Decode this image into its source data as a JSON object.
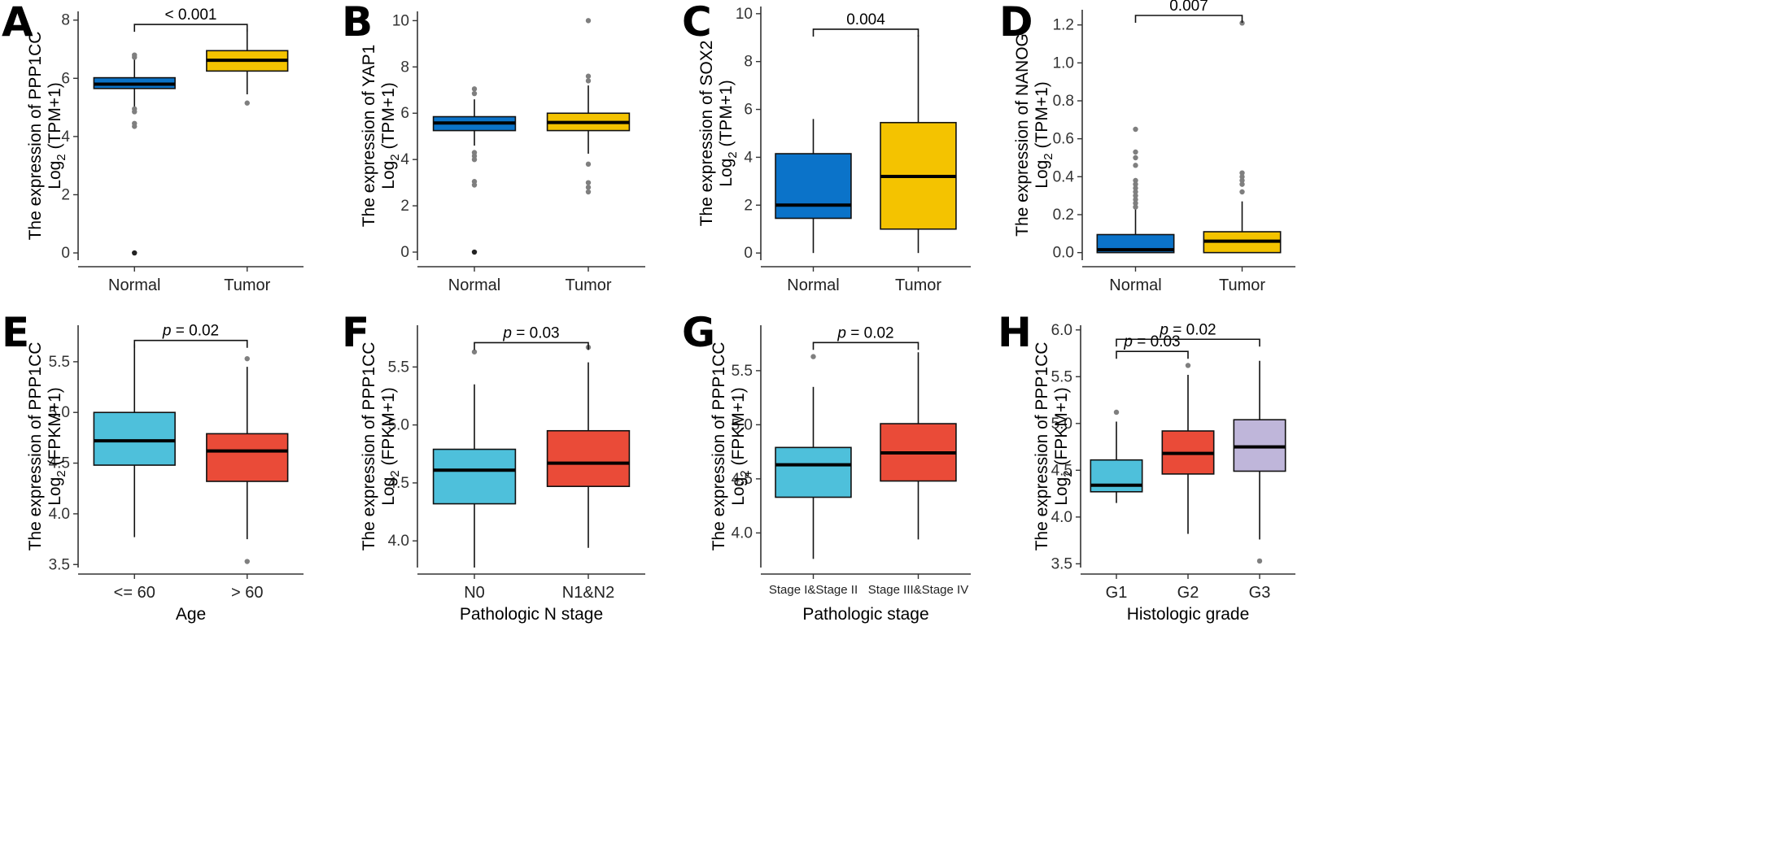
{
  "colors": {
    "normal": "#0B73C9",
    "tumor": "#F4C300",
    "cyan": "#4EC0DB",
    "red": "#EA4B38",
    "lavender": "#BFB6DA",
    "outlier_grey": "#7F7F7F",
    "outlier_black": "#222222"
  },
  "chart_data": [
    {
      "panel": "A",
      "type": "box",
      "ylabel_line1": "The expression of PPP1CC",
      "ylabel_line2_base": "Log",
      "ylabel_line2_sub": "2",
      "ylabel_line2_rest": " (TPM+1)",
      "xlabel": "",
      "ylim": [
        -0.25,
        8.3
      ],
      "yticks": [
        0,
        2,
        4,
        6,
        8
      ],
      "ytick_labels": [
        "0",
        "2",
        "4",
        "6",
        "8"
      ],
      "categories": [
        "Normal",
        "Tumor"
      ],
      "boxes": [
        {
          "name": "Normal",
          "color": "normal",
          "whisker_low": 5.0,
          "q1": 5.65,
          "median": 5.8,
          "q3": 6.02,
          "whisker_high": 6.65,
          "outliers": [
            {
              "v": 6.72,
              "c": "grey"
            },
            {
              "v": 6.8,
              "c": "grey"
            },
            {
              "v": 4.95,
              "c": "grey"
            },
            {
              "v": 4.85,
              "c": "grey"
            },
            {
              "v": 4.45,
              "c": "grey"
            },
            {
              "v": 4.35,
              "c": "grey"
            },
            {
              "v": 0.0,
              "c": "black"
            }
          ]
        },
        {
          "name": "Tumor",
          "color": "tumor",
          "whisker_low": 5.45,
          "q1": 6.25,
          "median": 6.62,
          "q3": 6.95,
          "whisker_high": 7.7,
          "outliers": [
            {
              "v": 5.15,
              "c": "grey"
            }
          ]
        }
      ],
      "brackets": [
        {
          "from": 0,
          "to": 1,
          "y": 7.85,
          "label": "< 0.001",
          "p_prefix": ""
        }
      ]
    },
    {
      "panel": "B",
      "type": "box",
      "ylabel_line1": "The expression of YAP1",
      "ylabel_line2_base": "Log",
      "ylabel_line2_sub": "2",
      "ylabel_line2_rest": " (TPM+1)",
      "xlabel": "",
      "ylim": [
        -0.35,
        10.4
      ],
      "yticks": [
        0,
        2,
        4,
        6,
        8,
        10
      ],
      "ytick_labels": [
        "0",
        "2",
        "4",
        "6",
        "8",
        "10"
      ],
      "categories": [
        "Normal",
        "Tumor"
      ],
      "boxes": [
        {
          "name": "Normal",
          "color": "normal",
          "whisker_low": 4.6,
          "q1": 5.25,
          "median": 5.58,
          "q3": 5.85,
          "whisker_high": 6.6,
          "outliers": [
            {
              "v": 7.05,
              "c": "grey"
            },
            {
              "v": 6.85,
              "c": "grey"
            },
            {
              "v": 4.3,
              "c": "grey"
            },
            {
              "v": 4.15,
              "c": "grey"
            },
            {
              "v": 4.0,
              "c": "grey"
            },
            {
              "v": 3.05,
              "c": "grey"
            },
            {
              "v": 2.9,
              "c": "grey"
            },
            {
              "v": 0.0,
              "c": "black"
            }
          ]
        },
        {
          "name": "Tumor",
          "color": "tumor",
          "whisker_low": 4.25,
          "q1": 5.25,
          "median": 5.6,
          "q3": 6.0,
          "whisker_high": 7.2,
          "outliers": [
            {
              "v": 10.0,
              "c": "grey"
            },
            {
              "v": 7.6,
              "c": "grey"
            },
            {
              "v": 7.4,
              "c": "grey"
            },
            {
              "v": 3.8,
              "c": "grey"
            },
            {
              "v": 3.0,
              "c": "grey"
            },
            {
              "v": 2.8,
              "c": "grey"
            },
            {
              "v": 2.6,
              "c": "grey"
            }
          ]
        }
      ],
      "brackets": []
    },
    {
      "panel": "C",
      "type": "box",
      "ylabel_line1": "The expression of SOX2",
      "ylabel_line2_base": "Log",
      "ylabel_line2_sub": "2",
      "ylabel_line2_rest": " (TPM+1)",
      "xlabel": "",
      "ylim": [
        -0.3,
        10.3
      ],
      "yticks": [
        0,
        2,
        4,
        6,
        8,
        10
      ],
      "ytick_labels": [
        "0",
        "2",
        "4",
        "6",
        "8",
        "10"
      ],
      "categories": [
        "Normal",
        "Tumor"
      ],
      "boxes": [
        {
          "name": "Normal",
          "color": "normal",
          "whisker_low": 0.0,
          "q1": 1.45,
          "median": 2.0,
          "q3": 4.15,
          "whisker_high": 5.6,
          "outliers": []
        },
        {
          "name": "Tumor",
          "color": "tumor",
          "whisker_low": 0.0,
          "q1": 1.0,
          "median": 3.2,
          "q3": 5.45,
          "whisker_high": 9.1,
          "outliers": []
        }
      ],
      "brackets": [
        {
          "from": 0,
          "to": 1,
          "y": 9.35,
          "label": "0.004",
          "p_prefix": ""
        }
      ]
    },
    {
      "panel": "D",
      "type": "box",
      "ylabel_line1": "The expression of NANOG",
      "ylabel_line2_base": "Log",
      "ylabel_line2_sub": "2",
      "ylabel_line2_rest": " (TPM+1)",
      "xlabel": "",
      "ylim": [
        -0.04,
        1.28
      ],
      "yticks": [
        0.0,
        0.2,
        0.4,
        0.6,
        0.8,
        1.0,
        1.2
      ],
      "ytick_labels": [
        "0.0",
        "0.2",
        "0.4",
        "0.6",
        "0.8",
        "1.0",
        "1.2"
      ],
      "categories": [
        "Normal",
        "Tumor"
      ],
      "boxes": [
        {
          "name": "Normal",
          "color": "normal",
          "whisker_low": 0.0,
          "q1": 0.0,
          "median": 0.015,
          "q3": 0.095,
          "whisker_high": 0.23,
          "outliers": [
            {
              "v": 0.65,
              "c": "grey"
            },
            {
              "v": 0.53,
              "c": "grey"
            },
            {
              "v": 0.5,
              "c": "grey"
            },
            {
              "v": 0.46,
              "c": "grey"
            },
            {
              "v": 0.38,
              "c": "grey"
            },
            {
              "v": 0.36,
              "c": "grey"
            },
            {
              "v": 0.34,
              "c": "grey"
            },
            {
              "v": 0.32,
              "c": "grey"
            },
            {
              "v": 0.3,
              "c": "grey"
            },
            {
              "v": 0.28,
              "c": "grey"
            },
            {
              "v": 0.26,
              "c": "grey"
            },
            {
              "v": 0.24,
              "c": "grey"
            }
          ]
        },
        {
          "name": "Tumor",
          "color": "tumor",
          "whisker_low": 0.0,
          "q1": 0.0,
          "median": 0.06,
          "q3": 0.11,
          "whisker_high": 0.27,
          "outliers": [
            {
              "v": 1.21,
              "c": "grey"
            },
            {
              "v": 0.42,
              "c": "grey"
            },
            {
              "v": 0.4,
              "c": "grey"
            },
            {
              "v": 0.38,
              "c": "grey"
            },
            {
              "v": 0.36,
              "c": "grey"
            },
            {
              "v": 0.32,
              "c": "grey"
            }
          ]
        }
      ],
      "brackets": [
        {
          "from": 0,
          "to": 1,
          "y": 1.25,
          "label": "0.007",
          "p_prefix": ""
        }
      ]
    },
    {
      "panel": "E",
      "type": "box",
      "ylabel_line1": "The expression of PPP1CC",
      "ylabel_line2_base": "Log",
      "ylabel_line2_sub": "2",
      "ylabel_line2_rest": " (FPKM+1)",
      "xlabel": "Age",
      "ylim": [
        3.47,
        5.86
      ],
      "yticks": [
        3.5,
        4.0,
        4.5,
        5.0,
        5.5
      ],
      "ytick_labels": [
        "3.5",
        "4.0",
        "4.5",
        "5.0",
        "5.5"
      ],
      "categories": [
        "<= 60",
        "> 60"
      ],
      "boxes": [
        {
          "name": "<= 60",
          "color": "cyan",
          "whisker_low": 3.77,
          "q1": 4.48,
          "median": 4.72,
          "q3": 5.0,
          "whisker_high": 5.67,
          "outliers": []
        },
        {
          "name": "> 60",
          "color": "red",
          "whisker_low": 3.75,
          "q1": 4.32,
          "median": 4.62,
          "q3": 4.79,
          "whisker_high": 5.45,
          "outliers": [
            {
              "v": 5.53,
              "c": "grey"
            },
            {
              "v": 3.53,
              "c": "grey"
            }
          ]
        }
      ],
      "brackets": [
        {
          "from": 0,
          "to": 1,
          "y": 5.71,
          "label": "= 0.02",
          "p_prefix": "p"
        }
      ]
    },
    {
      "panel": "F",
      "type": "box",
      "ylabel_line1": "The expression of PPP1CC",
      "ylabel_line2_base": "Log",
      "ylabel_line2_sub": "2",
      "ylabel_line2_rest": " (FPKM+1)",
      "xlabel": "Pathologic N stage",
      "ylim": [
        3.77,
        5.86
      ],
      "yticks": [
        4.0,
        4.5,
        5.0,
        5.5
      ],
      "ytick_labels": [
        "4.0",
        "4.5",
        "5.0",
        "5.5"
      ],
      "categories": [
        "N0",
        "N1&N2"
      ],
      "boxes": [
        {
          "name": "N0",
          "color": "cyan",
          "whisker_low": 3.77,
          "q1": 4.32,
          "median": 4.61,
          "q3": 4.79,
          "whisker_high": 5.35,
          "outliers": [
            {
              "v": 5.63,
              "c": "grey"
            }
          ]
        },
        {
          "name": "N1&N2",
          "color": "red",
          "whisker_low": 3.94,
          "q1": 4.47,
          "median": 4.67,
          "q3": 4.95,
          "whisker_high": 5.54,
          "outliers": [
            {
              "v": 5.67,
              "c": "grey"
            }
          ]
        }
      ],
      "brackets": [
        {
          "from": 0,
          "to": 1,
          "y": 5.71,
          "label": "= 0.03",
          "p_prefix": "p"
        }
      ]
    },
    {
      "panel": "G",
      "type": "box",
      "ylabel_line1": "The expression of PPP1CC",
      "ylabel_line2_base": "Log",
      "ylabel_line2_sub": "2",
      "ylabel_line2_rest": " (FPKM+1)",
      "xlabel": "Pathologic stage",
      "ylim": [
        3.68,
        5.92
      ],
      "yticks": [
        4.0,
        4.5,
        5.0,
        5.5
      ],
      "ytick_labels": [
        "4.0",
        "4.5",
        "5.0",
        "5.5"
      ],
      "categories": [
        "Stage I&Stage II",
        "Stage III&Stage IV"
      ],
      "boxes": [
        {
          "name": "Stage I&Stage II",
          "color": "cyan",
          "whisker_low": 3.76,
          "q1": 4.33,
          "median": 4.63,
          "q3": 4.79,
          "whisker_high": 5.35,
          "outliers": [
            {
              "v": 5.63,
              "c": "grey"
            }
          ]
        },
        {
          "name": "Stage III&Stage IV",
          "color": "red",
          "whisker_low": 3.94,
          "q1": 4.48,
          "median": 4.74,
          "q3": 5.01,
          "whisker_high": 5.67,
          "outliers": []
        }
      ],
      "brackets": [
        {
          "from": 0,
          "to": 1,
          "y": 5.76,
          "label": "= 0.02",
          "p_prefix": "p"
        }
      ]
    },
    {
      "panel": "H",
      "type": "box",
      "ylabel_line1": "The expression of PPP1CC",
      "ylabel_line2_base": "Log",
      "ylabel_line2_sub": "2",
      "ylabel_line2_rest": " (FPKM+1)",
      "xlabel": "Histologic grade",
      "ylim": [
        3.46,
        6.05
      ],
      "yticks": [
        3.5,
        4.0,
        4.5,
        5.0,
        5.5,
        6.0
      ],
      "ytick_labels": [
        "3.5",
        "4.0",
        "4.5",
        "5.0",
        "5.5",
        "6.0"
      ],
      "categories": [
        "G1",
        "G2",
        "G3"
      ],
      "boxes": [
        {
          "name": "G1",
          "color": "cyan",
          "whisker_low": 4.15,
          "q1": 4.27,
          "median": 4.34,
          "q3": 4.61,
          "whisker_high": 5.02,
          "outliers": [
            {
              "v": 5.12,
              "c": "grey"
            }
          ]
        },
        {
          "name": "G2",
          "color": "red",
          "whisker_low": 3.82,
          "q1": 4.46,
          "median": 4.68,
          "q3": 4.92,
          "whisker_high": 5.52,
          "outliers": [
            {
              "v": 5.62,
              "c": "grey"
            }
          ]
        },
        {
          "name": "G3",
          "color": "lavender",
          "whisker_low": 3.76,
          "q1": 4.49,
          "median": 4.75,
          "q3": 5.04,
          "whisker_high": 5.67,
          "outliers": [
            {
              "v": 3.53,
              "c": "grey"
            }
          ]
        }
      ],
      "brackets": [
        {
          "from": 0,
          "to": 2,
          "y": 5.9,
          "label": "= 0.02",
          "p_prefix": "p"
        },
        {
          "from": 0,
          "to": 1,
          "y": 5.77,
          "label": "= 0.03",
          "p_prefix": "p"
        }
      ]
    }
  ]
}
